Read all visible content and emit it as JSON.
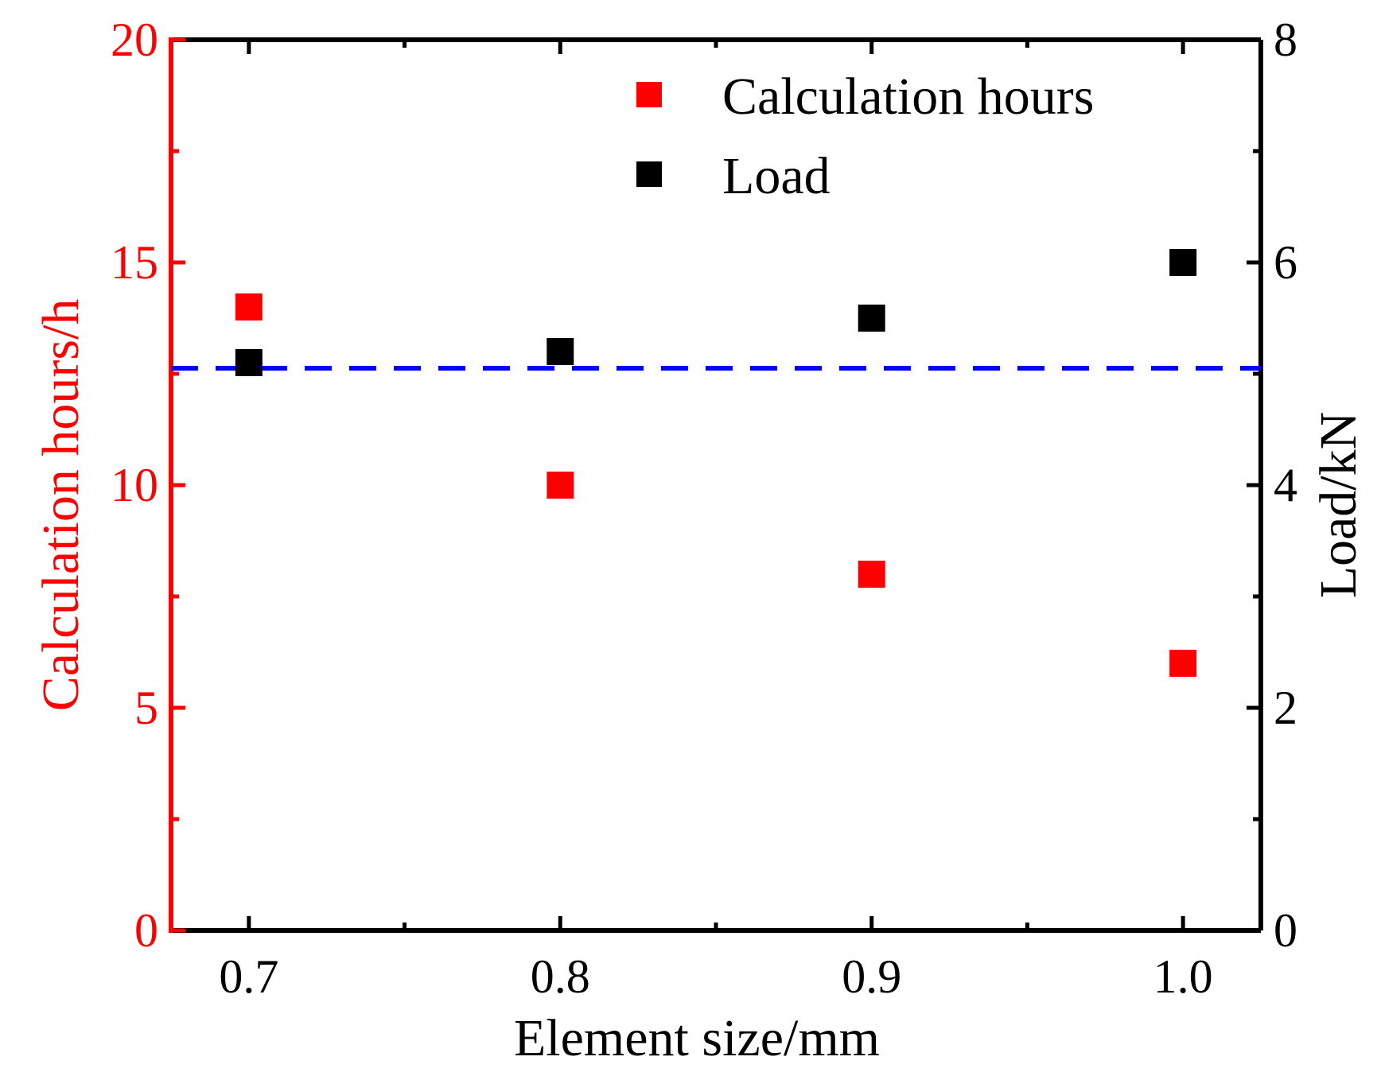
{
  "chart_data": {
    "type": "scatter",
    "xlabel": "Element size/mm",
    "ylabel_left": "Calculation hours/h",
    "ylabel_right": "Load/kN",
    "xlim": [
      0.675,
      1.025
    ],
    "ylim_left": [
      0,
      20
    ],
    "ylim_right": [
      0,
      8
    ],
    "x_ticks": [
      0.7,
      0.8,
      0.9,
      1.0
    ],
    "x_tick_labels": [
      "0.7",
      "0.8",
      "0.9",
      "1.0"
    ],
    "x_minor_ticks": [
      0.75,
      0.85,
      0.95
    ],
    "y_left_ticks": [
      0,
      5,
      10,
      15,
      20
    ],
    "y_left_tick_labels": [
      "0",
      "5",
      "10",
      "15",
      "20"
    ],
    "y_left_minor_ticks": [
      2.5,
      7.5,
      12.5,
      17.5
    ],
    "y_right_ticks": [
      0,
      2,
      4,
      6,
      8
    ],
    "y_right_tick_labels": [
      "0",
      "2",
      "4",
      "6",
      "8"
    ],
    "y_right_minor_ticks": [
      1,
      3,
      5,
      7
    ],
    "series": [
      {
        "name": "Calculation hours",
        "axis": "left",
        "color": "#ff0000",
        "marker": "square",
        "x": [
          0.7,
          0.8,
          0.9,
          1.0
        ],
        "values": [
          14,
          10,
          8,
          6
        ]
      },
      {
        "name": "Load",
        "axis": "right",
        "color": "#000000",
        "marker": "square",
        "x": [
          0.7,
          0.8,
          0.9,
          1.0
        ],
        "values": [
          5.1,
          5.2,
          5.5,
          6.0
        ]
      }
    ],
    "reference_line": {
      "axis": "right",
      "value": 5.05,
      "color": "#0000ff",
      "style": "dashed"
    },
    "legend_placement": "top-right",
    "grid": false,
    "left_axis_color": "#ff0000",
    "right_axis_color": "#000000"
  }
}
